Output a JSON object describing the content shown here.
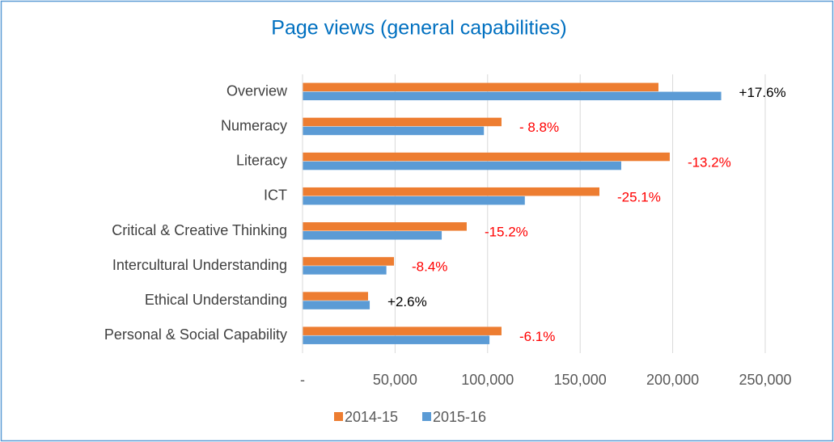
{
  "chart_data": {
    "type": "bar",
    "orientation": "horizontal",
    "title": "Page views (general capabilities)",
    "categories": [
      "Overview",
      "Numeracy",
      "Literacy",
      "ICT",
      "Critical & Creative Thinking",
      "Intercultural Understanding",
      "Ethical Understanding",
      "Personal & Social Capability"
    ],
    "series": [
      {
        "name": "2014-15",
        "color": "#ed7d31",
        "values": [
          192300,
          107500,
          198400,
          160400,
          88700,
          49400,
          35400,
          107500
        ]
      },
      {
        "name": "2015-16",
        "color": "#5b9bd5",
        "values": [
          226200,
          98000,
          172200,
          120100,
          75200,
          45300,
          36300,
          101000
        ]
      }
    ],
    "annotations": [
      {
        "text": "+17.6%",
        "color": "#000000"
      },
      {
        "text": "- 8.8%",
        "color": "#ff0000"
      },
      {
        "text": "-13.2%",
        "color": "#ff0000"
      },
      {
        "text": "-25.1%",
        "color": "#ff0000"
      },
      {
        "text": "-15.2%",
        "color": "#ff0000"
      },
      {
        "text": "-8.4%",
        "color": "#ff0000"
      },
      {
        "text": "+2.6%",
        "color": "#000000"
      },
      {
        "text": "-6.1%",
        "color": "#ff0000"
      }
    ],
    "xlim": [
      0,
      250000
    ],
    "xticks": [
      {
        "value": 0,
        "label": "-"
      },
      {
        "value": 50000,
        "label": "50,000"
      },
      {
        "value": 100000,
        "label": "100,000"
      },
      {
        "value": 150000,
        "label": "150,000"
      },
      {
        "value": 200000,
        "label": "200,000"
      },
      {
        "value": 250000,
        "label": "250,000"
      }
    ],
    "grid": true,
    "legend": "bottom"
  }
}
